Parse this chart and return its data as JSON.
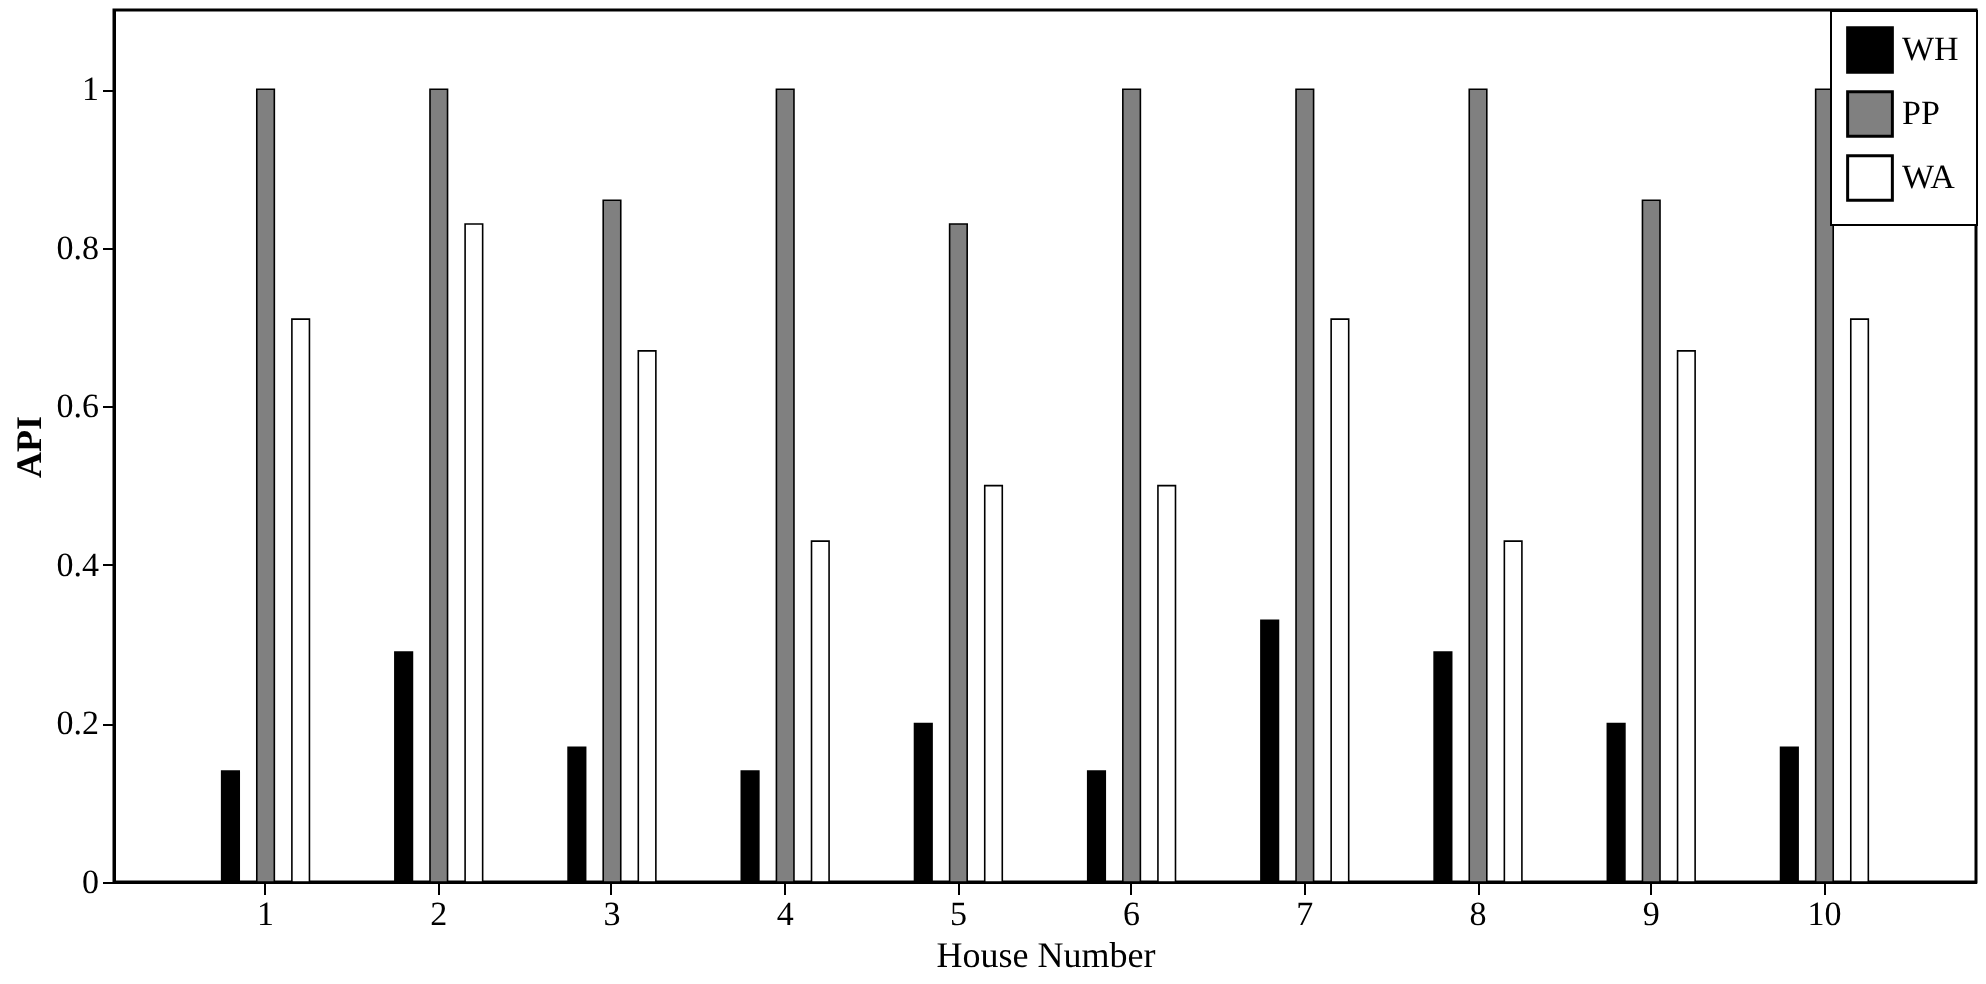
{
  "chart_data": {
    "type": "bar",
    "xlabel": "House Number",
    "ylabel": "API",
    "categories": [
      "1",
      "2",
      "3",
      "4",
      "5",
      "6",
      "7",
      "8",
      "9",
      "10"
    ],
    "series": [
      {
        "name": "WH",
        "color": "#000000",
        "values": [
          0.14,
          0.29,
          0.17,
          0.14,
          0.2,
          0.14,
          0.33,
          0.29,
          0.2,
          0.17
        ]
      },
      {
        "name": "PP",
        "color": "#808080",
        "values": [
          1,
          1,
          0.86,
          1,
          0.83,
          1,
          1,
          1,
          0.86,
          1
        ]
      },
      {
        "name": "WA",
        "color": "#ffffff",
        "values": [
          0.71,
          0.83,
          0.67,
          0.43,
          0.5,
          0.5,
          0.71,
          0.43,
          0.67,
          0.71
        ]
      }
    ],
    "ylim": [
      0,
      1.1
    ],
    "yticks": [
      0,
      0.2,
      0.4,
      0.6,
      0.8,
      1
    ],
    "grid": false,
    "legend": "top right"
  }
}
